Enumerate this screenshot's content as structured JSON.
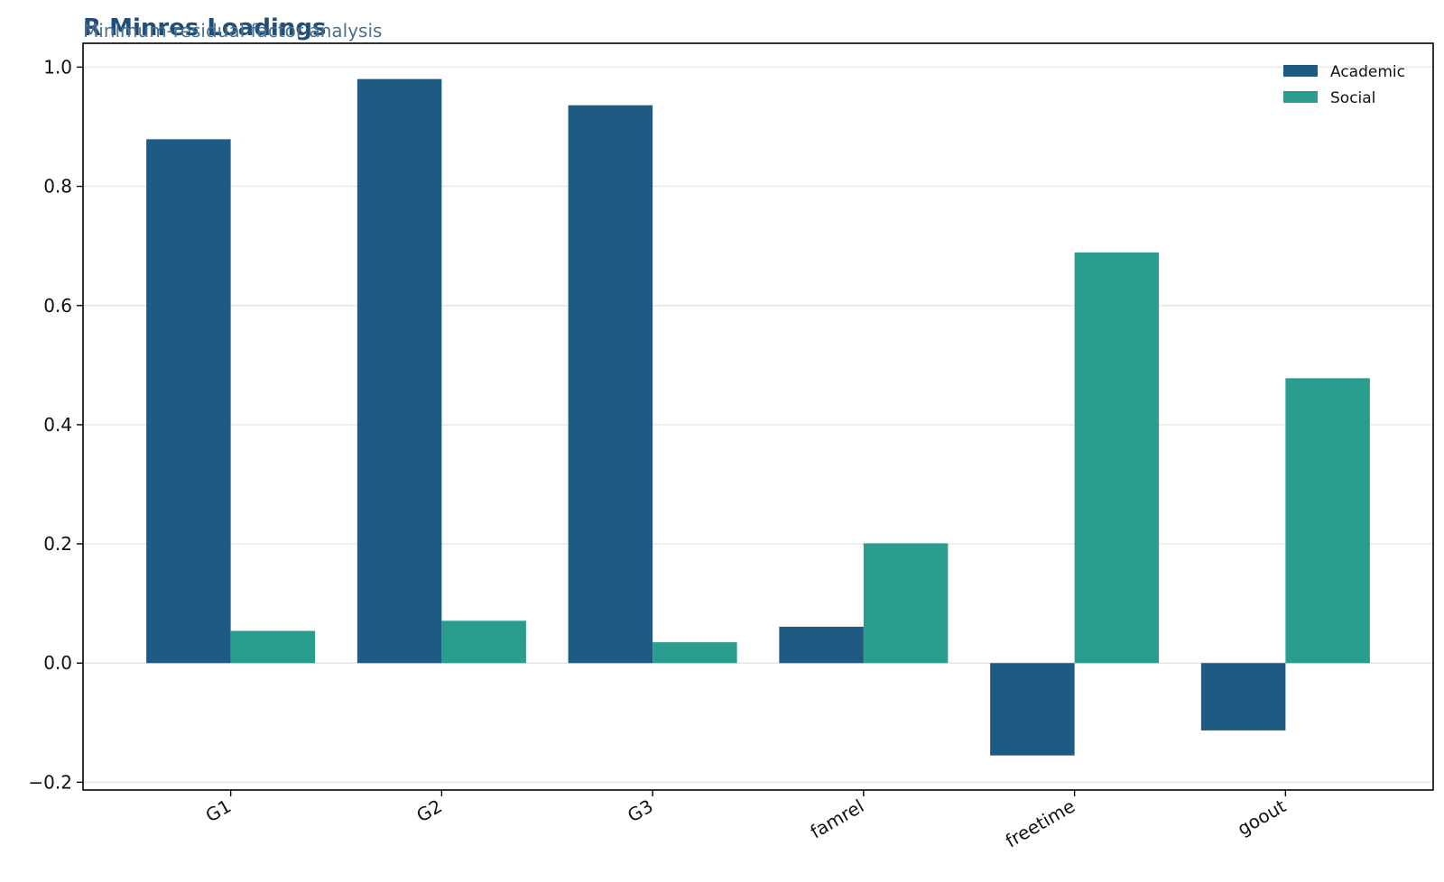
{
  "chart_data": {
    "type": "bar",
    "title": "R Minres Loadings",
    "subtitle": "Minimum-residual factor analysis",
    "xlabel": "",
    "ylabel": "",
    "categories": [
      "G1",
      "G2",
      "G3",
      "famrel",
      "freetime",
      "goout"
    ],
    "series": [
      {
        "name": "Academic",
        "color": "#1f5a82",
        "values": [
          0.879,
          0.98,
          0.936,
          0.061,
          -0.155,
          -0.113
        ]
      },
      {
        "name": "Social",
        "color": "#2a9d8f",
        "values": [
          0.054,
          0.071,
          0.035,
          0.201,
          0.689,
          0.478
        ]
      }
    ],
    "ylim": [
      -0.213,
      1.04
    ],
    "yticks": [
      -0.2,
      0.0,
      0.2,
      0.4,
      0.6,
      0.8,
      1.0
    ],
    "ytick_labels": [
      "−0.2",
      "0.0",
      "0.2",
      "0.4",
      "0.6",
      "0.8",
      "1.0"
    ],
    "grid": true,
    "legend_position": "top-right"
  }
}
